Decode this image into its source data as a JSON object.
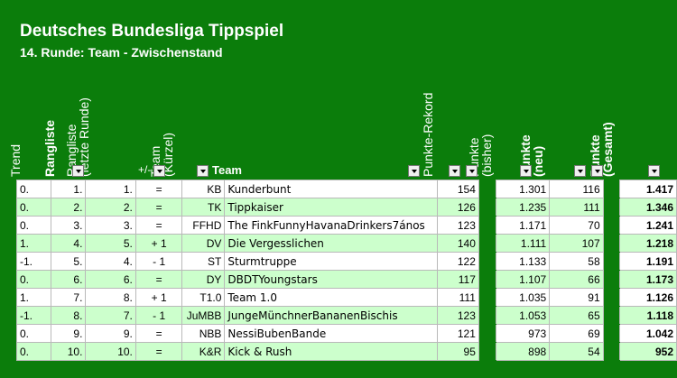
{
  "title": "Deutsches Bundesliga Tippspiel",
  "subtitle": "14. Runde: Team - Zwischenstand",
  "headers": {
    "trend": "Trend",
    "rangliste": "Rangliste",
    "rangliste_letzte_1": "Rangliste",
    "rangliste_letzte_2": "(letzte Runde)",
    "plusminus": "+/-",
    "team_kurz_1": "Team",
    "team_kurz_2": "(Kürzel)",
    "team": "Team",
    "punkte_rekord": "Punkte-Rekord",
    "punkte_bisher_1": "Punkte",
    "punkte_bisher_2": "(bisher)",
    "punkte_neu_1": "Punkte",
    "punkte_neu_2": "(neu)",
    "punkte_gesamt_1": "Punkte",
    "punkte_gesamt_2": "(Gesamt)"
  },
  "rows": [
    {
      "trend": "0.",
      "rang": "1.",
      "letzte": "1.",
      "pm": "=",
      "kurz": "KB",
      "team": "Kunderbunt",
      "rekord": "154",
      "bisher": "1.301",
      "neu": "116",
      "gesamt": "1.417"
    },
    {
      "trend": "0.",
      "rang": "2.",
      "letzte": "2.",
      "pm": "=",
      "kurz": "TK",
      "team": "Tippkaiser",
      "rekord": "126",
      "bisher": "1.235",
      "neu": "111",
      "gesamt": "1.346"
    },
    {
      "trend": "0.",
      "rang": "3.",
      "letzte": "3.",
      "pm": "=",
      "kurz": "FFHD",
      "team": "The FinkFunnyHavanaDrinkers7ános",
      "rekord": "123",
      "bisher": "1.171",
      "neu": "70",
      "gesamt": "1.241"
    },
    {
      "trend": "1.",
      "rang": "4.",
      "letzte": "5.",
      "pm": "+ 1",
      "kurz": "DV",
      "team": "Die Vergesslichen",
      "rekord": "140",
      "bisher": "1.111",
      "neu": "107",
      "gesamt": "1.218"
    },
    {
      "trend": "-1.",
      "rang": "5.",
      "letzte": "4.",
      "pm": "- 1",
      "kurz": "ST",
      "team": "Sturmtruppe",
      "rekord": "122",
      "bisher": "1.133",
      "neu": "58",
      "gesamt": "1.191"
    },
    {
      "trend": "0.",
      "rang": "6.",
      "letzte": "6.",
      "pm": "=",
      "kurz": "DY",
      "team": "DBDTYoungstars",
      "rekord": "117",
      "bisher": "1.107",
      "neu": "66",
      "gesamt": "1.173"
    },
    {
      "trend": "1.",
      "rang": "7.",
      "letzte": "8.",
      "pm": "+ 1",
      "kurz": "T1.0",
      "team": "Team 1.0",
      "rekord": "111",
      "bisher": "1.035",
      "neu": "91",
      "gesamt": "1.126"
    },
    {
      "trend": "-1.",
      "rang": "8.",
      "letzte": "7.",
      "pm": "- 1",
      "kurz": "JuMBB",
      "team": "JungeMünchnerBananenBischis",
      "rekord": "123",
      "bisher": "1.053",
      "neu": "65",
      "gesamt": "1.118"
    },
    {
      "trend": "0.",
      "rang": "9.",
      "letzte": "9.",
      "pm": "=",
      "kurz": "NBB",
      "team": "NessiBubenBande",
      "rekord": "121",
      "bisher": "973",
      "neu": "69",
      "gesamt": "1.042"
    },
    {
      "trend": "0.",
      "rang": "10.",
      "letzte": "10.",
      "pm": "=",
      "kurz": "K&R",
      "team": "Kick & Rush",
      "rekord": "95",
      "bisher": "898",
      "neu": "54",
      "gesamt": "952"
    }
  ],
  "colors": {
    "background": "#0b7d0b",
    "row_even": "#ccffcc",
    "row_odd": "#ffffff"
  }
}
